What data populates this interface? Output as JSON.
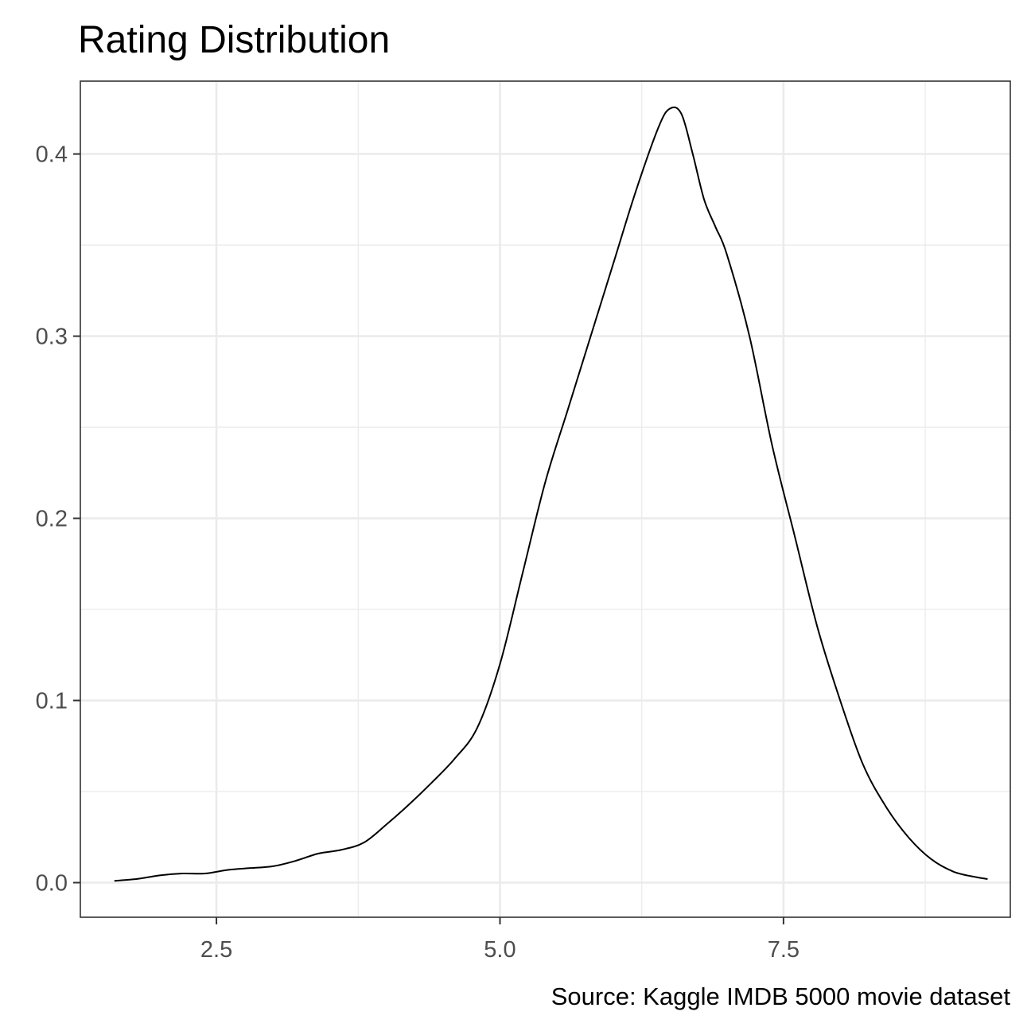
{
  "chart_data": {
    "type": "area",
    "geom": "density",
    "title": "Rating Distribution",
    "caption": "Source: Kaggle IMDB 5000 movie dataset",
    "xlabel": "",
    "ylabel": "",
    "xlim": [
      1.3,
      9.5
    ],
    "ylim": [
      -0.019,
      0.44
    ],
    "x_ticks": [
      2.5,
      5.0,
      7.5
    ],
    "x_tick_labels": [
      "2.5",
      "5.0",
      "7.5"
    ],
    "y_ticks": [
      0.0,
      0.1,
      0.2,
      0.3,
      0.4
    ],
    "y_tick_labels": [
      "0.0",
      "0.1",
      "0.2",
      "0.3",
      "0.4"
    ],
    "x_minor_ticks": [
      3.75,
      6.25,
      8.75
    ],
    "y_minor_ticks": [
      0.05,
      0.15,
      0.25,
      0.35
    ],
    "grid": true,
    "theme": "bw",
    "colors": {
      "line": "#000000",
      "grid": "#ebebeb",
      "panel_border": "#333333",
      "tick_text": "#4d4d4d"
    },
    "series": [
      {
        "x": [
          1.6,
          1.8,
          2.0,
          2.2,
          2.4,
          2.6,
          2.8,
          3.0,
          3.2,
          3.4,
          3.6,
          3.8,
          4.0,
          4.2,
          4.4,
          4.6,
          4.8,
          5.0,
          5.2,
          5.4,
          5.6,
          5.8,
          6.0,
          6.2,
          6.4,
          6.5,
          6.6,
          6.7,
          6.8,
          6.9,
          7.0,
          7.2,
          7.4,
          7.6,
          7.8,
          8.0,
          8.2,
          8.4,
          8.6,
          8.8,
          9.0,
          9.2,
          9.3
        ],
        "y": [
          0.001,
          0.002,
          0.004,
          0.005,
          0.005,
          0.007,
          0.008,
          0.009,
          0.012,
          0.016,
          0.018,
          0.022,
          0.032,
          0.043,
          0.055,
          0.068,
          0.085,
          0.12,
          0.17,
          0.22,
          0.26,
          0.3,
          0.34,
          0.38,
          0.415,
          0.425,
          0.422,
          0.4,
          0.375,
          0.36,
          0.345,
          0.3,
          0.24,
          0.19,
          0.14,
          0.1,
          0.065,
          0.042,
          0.025,
          0.013,
          0.006,
          0.003,
          0.002
        ]
      }
    ]
  }
}
